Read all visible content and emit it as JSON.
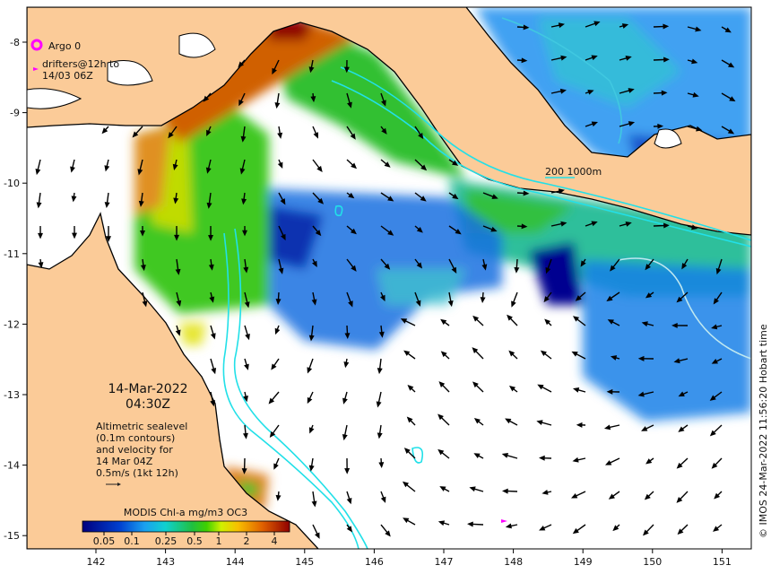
{
  "legend": {
    "argo_label": "Argo 0",
    "drifters_line1": "drifters@12h to",
    "drifters_line2": "14/03 06Z",
    "argo_color": "#ff00ff",
    "drifter_color": "#ff00ff"
  },
  "timestamp": {
    "date": "14-Mar-2022",
    "time": "04:30Z"
  },
  "altimetry_note": [
    "Altimetric sealevel",
    "(0.1m contours)",
    "and velocity for",
    "14 Mar 04Z",
    "0.5m/s (1kt 12h)"
  ],
  "depth_contours_label": "200  1000m",
  "contour_color": "#22e0e8",
  "colorbar": {
    "title": "MODIS Chl-a mg/m3 OC3",
    "ticks": [
      "0.05",
      "0.1",
      "0.25",
      "0.5",
      "1",
      "2",
      "4"
    ]
  },
  "x_axis": {
    "ticks": [
      "142",
      "143",
      "144",
      "145",
      "146",
      "147",
      "148",
      "149",
      "150",
      "151"
    ]
  },
  "y_axis": {
    "ticks": [
      "-8",
      "-9",
      "-10",
      "-11",
      "-12",
      "-13",
      "-14",
      "-15"
    ]
  },
  "credit": "© IMOS 24-Mar-2022 11:56:20 Hobart time",
  "colors": {
    "land": "#fbcb98",
    "sea": "#ffffff",
    "coast": "#000000"
  }
}
